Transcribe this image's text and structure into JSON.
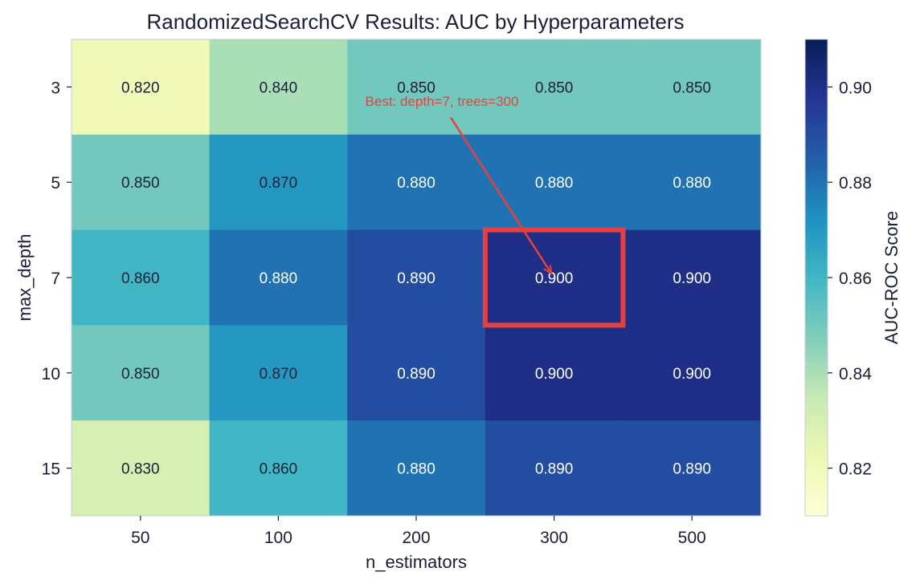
{
  "chart_data": {
    "type": "heatmap",
    "title": "RandomizedSearchCV Results: AUC by Hyperparameters",
    "xlabel": "n_estimators",
    "ylabel": "max_depth",
    "x_categories": [
      "50",
      "100",
      "200",
      "300",
      "500"
    ],
    "y_categories": [
      "3",
      "5",
      "7",
      "10",
      "15"
    ],
    "values": [
      [
        0.82,
        0.84,
        0.85,
        0.85,
        0.85
      ],
      [
        0.85,
        0.87,
        0.88,
        0.88,
        0.88
      ],
      [
        0.86,
        0.88,
        0.89,
        0.9,
        0.9
      ],
      [
        0.85,
        0.87,
        0.89,
        0.9,
        0.9
      ],
      [
        0.83,
        0.86,
        0.88,
        0.89,
        0.89
      ]
    ],
    "value_format": "0.000",
    "colormap": "YlGnBu",
    "colorbar": {
      "label": "AUC-ROC Score",
      "range": [
        0.81,
        0.91
      ],
      "ticks": [
        "0.82",
        "0.84",
        "0.86",
        "0.88",
        "0.90"
      ]
    },
    "highlight": {
      "row": 2,
      "col": 3,
      "color": "#e8403f",
      "annotation": "Best: depth=7, trees=300"
    }
  }
}
